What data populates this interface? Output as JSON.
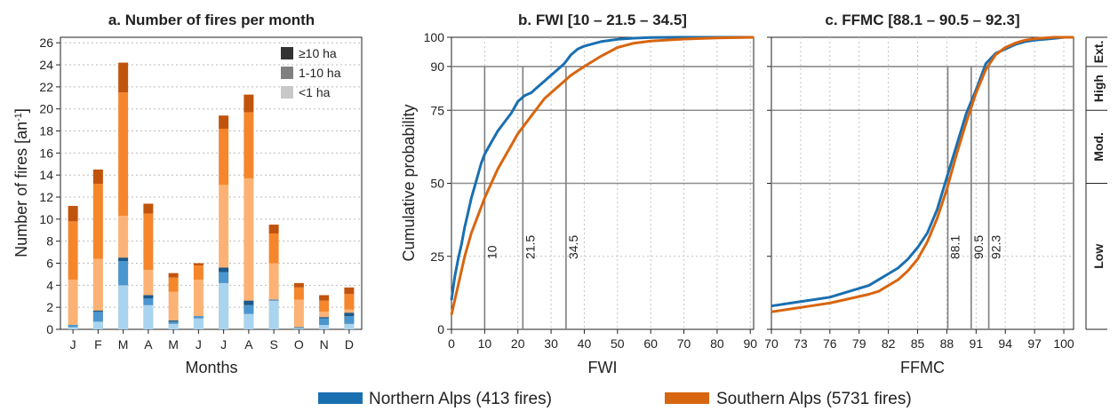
{
  "colors": {
    "north": "#1a6fb0",
    "south": "#d8650f",
    "grid": "#999999",
    "north_shades": [
      "#a8d4f0",
      "#4a96d0",
      "#1a5a8c"
    ],
    "south_shades": [
      "#fcb274",
      "#f5862c",
      "#c1540c"
    ],
    "legend_shades": [
      "#c8c8c8",
      "#808080",
      "#333333"
    ]
  },
  "legend": {
    "north": "Northern Alps  (413 fires)",
    "south": "Southern Alps  (5731 fires)"
  },
  "chart_data": [
    {
      "type": "bar",
      "title": "a. Number of fires per month",
      "xlabel": "Months",
      "ylabel_main": "Number of fires [an",
      "ylabel_sup": "-1",
      "ylabel_end": "]",
      "ylim": [
        0,
        26.5
      ],
      "yticks": [
        0,
        2,
        4,
        6,
        8,
        10,
        12,
        14,
        16,
        18,
        20,
        22,
        24,
        26
      ],
      "categories": [
        "J",
        "F",
        "M",
        "A",
        "M",
        "J",
        "J",
        "A",
        "S",
        "O",
        "N",
        "D"
      ],
      "stack_labels": [
        "<1 ha",
        "1-10 ha",
        "≥10 ha"
      ],
      "legend_order": [
        "≥10 ha",
        "1-10 ha",
        "<1 ha"
      ],
      "series": [
        {
          "name": "Northern Alps",
          "small": [
            0.2,
            0.7,
            4.0,
            2.2,
            0.5,
            1.0,
            4.2,
            1.4,
            2.6,
            0.1,
            0.4,
            0.5
          ],
          "medium": [
            0.2,
            0.9,
            2.2,
            0.6,
            0.2,
            0.2,
            1.0,
            0.8,
            0.1,
            0.1,
            0.6,
            0.7
          ],
          "large": [
            0.0,
            0.1,
            0.3,
            0.3,
            0.1,
            0.0,
            0.4,
            0.4,
            0.0,
            0.0,
            0.1,
            0.3
          ]
        },
        {
          "name": "Southern Alps",
          "small": [
            4.5,
            6.4,
            10.3,
            5.4,
            3.4,
            4.5,
            13.1,
            13.7,
            6.0,
            2.7,
            1.6,
            1.8
          ],
          "medium": [
            5.3,
            6.8,
            11.2,
            5.1,
            1.3,
            1.3,
            5.1,
            6.0,
            2.7,
            1.1,
            1.0,
            1.4
          ],
          "large": [
            1.4,
            1.3,
            2.7,
            0.9,
            0.4,
            0.2,
            1.2,
            1.6,
            0.8,
            0.4,
            0.5,
            0.6
          ]
        }
      ]
    },
    {
      "type": "line",
      "title": "b. FWI [10 – 21.5 – 34.5]",
      "xlabel": "FWI",
      "ylabel": "Cumulative probability",
      "xlim": [
        0,
        91
      ],
      "ylim": [
        0,
        100
      ],
      "xticks": [
        0,
        10,
        20,
        30,
        40,
        50,
        60,
        70,
        80,
        90
      ],
      "yticks": [
        0,
        25,
        50,
        75,
        90,
        100
      ],
      "markers": [
        {
          "x": 10,
          "label": "10"
        },
        {
          "x": 21.5,
          "label": "21.5"
        },
        {
          "x": 34.5,
          "label": "34.5"
        }
      ],
      "series": [
        {
          "name": "Northern Alps",
          "x": [
            0,
            1,
            2,
            3,
            4,
            5,
            6,
            7,
            8,
            9,
            10,
            12,
            14,
            16,
            18,
            20,
            22,
            24,
            26,
            28,
            30,
            32,
            34,
            36,
            38,
            40,
            45,
            50,
            55,
            60,
            70,
            80,
            91
          ],
          "y": [
            10,
            18,
            24,
            29,
            35,
            40,
            45,
            49,
            53,
            57,
            60,
            64,
            68,
            71,
            74,
            78,
            80,
            81,
            83,
            85,
            87,
            89,
            91,
            94,
            96,
            97,
            98.5,
            99.3,
            99.7,
            99.9,
            100,
            100,
            100
          ]
        },
        {
          "name": "Southern Alps",
          "x": [
            0,
            2,
            4,
            6,
            8,
            10,
            12,
            14,
            16,
            18,
            20,
            22,
            24,
            26,
            28,
            30,
            32,
            34,
            36,
            38,
            40,
            45,
            50,
            55,
            60,
            70,
            80,
            91
          ],
          "y": [
            5,
            15,
            25,
            33,
            39,
            45,
            50,
            55,
            59,
            63,
            67,
            70,
            73,
            76,
            79,
            81,
            83,
            85,
            87,
            88.5,
            90,
            93.5,
            96.5,
            98,
            98.7,
            99.4,
            99.8,
            100
          ]
        }
      ]
    },
    {
      "type": "line",
      "title": "c. FFMC [88.1 – 90.5 – 92.3]",
      "xlabel": "FFMC",
      "ylabel": "",
      "xlim": [
        70,
        101
      ],
      "ylim": [
        0,
        100
      ],
      "xticks": [
        70,
        73,
        76,
        79,
        82,
        85,
        88,
        91,
        94,
        97,
        100
      ],
      "yticks": [
        0,
        25,
        50,
        75,
        90,
        100
      ],
      "markers": [
        {
          "x": 88.1,
          "label": "88.1"
        },
        {
          "x": 90.5,
          "label": "90.5"
        },
        {
          "x": 92.3,
          "label": "92.3"
        }
      ],
      "zones": [
        {
          "label": "Low",
          "from": 0,
          "to": 50
        },
        {
          "label": "Mod.",
          "from": 50,
          "to": 75
        },
        {
          "label": "High",
          "from": 75,
          "to": 90
        },
        {
          "label": "Ext.",
          "from": 90,
          "to": 100
        }
      ],
      "series": [
        {
          "name": "Northern Alps",
          "x": [
            70,
            72,
            74,
            76,
            78,
            80,
            81,
            82,
            83,
            84,
            85,
            86,
            87,
            88,
            89,
            90,
            91,
            92,
            93,
            94,
            95,
            96,
            97,
            98,
            99,
            100,
            101
          ],
          "y": [
            8,
            9,
            10,
            11,
            13,
            15,
            17,
            19,
            21,
            24,
            28,
            33,
            41,
            52,
            63,
            74,
            82,
            91,
            94.5,
            96,
            97.5,
            98.5,
            99,
            99.3,
            99.6,
            100,
            100
          ]
        },
        {
          "name": "Southern Alps",
          "x": [
            70,
            72,
            74,
            76,
            78,
            80,
            81,
            82,
            83,
            84,
            85,
            86,
            87,
            88,
            89,
            90,
            91,
            92,
            93,
            94,
            95,
            96,
            97,
            98,
            99,
            100,
            101
          ],
          "y": [
            6,
            7,
            8,
            9,
            10.5,
            12,
            13,
            15,
            17,
            20,
            24,
            30,
            38,
            48,
            60,
            71,
            81,
            89,
            94,
            96.5,
            98,
            99,
            99.5,
            99.8,
            100,
            100,
            100
          ]
        }
      ]
    }
  ]
}
